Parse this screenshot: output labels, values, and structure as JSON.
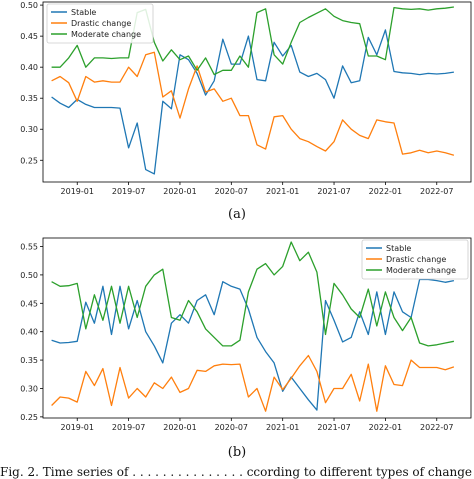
{
  "chart_data": [
    {
      "type": "line",
      "caption": "(a)",
      "x": [
        "2018-10",
        "2018-11",
        "2018-12",
        "2019-01",
        "2019-02",
        "2019-03",
        "2019-04",
        "2019-05",
        "2019-06",
        "2019-07",
        "2019-08",
        "2019-09",
        "2019-10",
        "2019-11",
        "2019-12",
        "2020-01",
        "2020-02",
        "2020-03",
        "2020-04",
        "2020-05",
        "2020-06",
        "2020-07",
        "2020-08",
        "2020-09",
        "2020-10",
        "2020-11",
        "2020-12",
        "2021-01",
        "2021-02",
        "2021-03",
        "2021-04",
        "2021-05",
        "2021-06",
        "2021-07",
        "2021-08",
        "2021-09",
        "2021-10",
        "2021-11",
        "2021-12",
        "2022-01",
        "2022-02",
        "2022-03",
        "2022-04",
        "2022-05",
        "2022-06",
        "2022-07",
        "2022-08",
        "2022-09"
      ],
      "xticks": [
        "2019-01",
        "2019-07",
        "2020-01",
        "2020-07",
        "2021-01",
        "2021-07",
        "2022-01",
        "2022-07"
      ],
      "yticks": [
        "0.25",
        "0.30",
        "0.35",
        "0.40",
        "0.45",
        "0.50"
      ],
      "ylim": [
        0.215,
        0.505
      ],
      "legend_position": "top-left",
      "series": [
        {
          "name": "Stable",
          "color": "#1f77b4",
          "values": [
            0.352,
            0.342,
            0.335,
            0.348,
            0.34,
            0.335,
            0.335,
            0.335,
            0.334,
            0.27,
            0.31,
            0.235,
            0.228,
            0.345,
            0.333,
            0.42,
            0.412,
            0.39,
            0.355,
            0.378,
            0.445,
            0.405,
            0.405,
            0.45,
            0.38,
            0.378,
            0.44,
            0.418,
            0.435,
            0.392,
            0.385,
            0.39,
            0.38,
            0.35,
            0.402,
            0.375,
            0.378,
            0.448,
            0.42,
            0.46,
            0.393,
            0.391,
            0.39,
            0.388,
            0.39,
            0.389,
            0.39,
            0.392
          ]
        },
        {
          "name": "Drastic change",
          "color": "#ff7f0e",
          "values": [
            0.378,
            0.385,
            0.375,
            0.345,
            0.385,
            0.376,
            0.378,
            0.376,
            0.376,
            0.4,
            0.385,
            0.42,
            0.424,
            0.352,
            0.362,
            0.318,
            0.365,
            0.402,
            0.36,
            0.365,
            0.345,
            0.35,
            0.322,
            0.322,
            0.275,
            0.268,
            0.32,
            0.322,
            0.3,
            0.285,
            0.28,
            0.272,
            0.265,
            0.28,
            0.315,
            0.3,
            0.29,
            0.285,
            0.315,
            0.312,
            0.31,
            0.26,
            0.262,
            0.266,
            0.262,
            0.265,
            0.262,
            0.258
          ]
        },
        {
          "name": "Moderate change",
          "color": "#2ca02c",
          "values": [
            0.4,
            0.4,
            0.415,
            0.435,
            0.4,
            0.415,
            0.415,
            0.414,
            0.415,
            0.415,
            0.488,
            0.493,
            0.44,
            0.41,
            0.428,
            0.412,
            0.418,
            0.395,
            0.415,
            0.388,
            0.395,
            0.395,
            0.418,
            0.4,
            0.488,
            0.494,
            0.42,
            0.405,
            0.44,
            0.472,
            0.48,
            0.487,
            0.494,
            0.482,
            0.475,
            0.472,
            0.47,
            0.418,
            0.418,
            0.412,
            0.496,
            0.494,
            0.493,
            0.494,
            0.492,
            0.494,
            0.495,
            0.497
          ]
        }
      ]
    },
    {
      "type": "line",
      "caption": "(b)",
      "x": [
        "2018-10",
        "2018-11",
        "2018-12",
        "2019-01",
        "2019-02",
        "2019-03",
        "2019-04",
        "2019-05",
        "2019-06",
        "2019-07",
        "2019-08",
        "2019-09",
        "2019-10",
        "2019-11",
        "2019-12",
        "2020-01",
        "2020-02",
        "2020-03",
        "2020-04",
        "2020-05",
        "2020-06",
        "2020-07",
        "2020-08",
        "2020-09",
        "2020-10",
        "2020-11",
        "2020-12",
        "2021-01",
        "2021-02",
        "2021-03",
        "2021-04",
        "2021-05",
        "2021-06",
        "2021-07",
        "2021-08",
        "2021-09",
        "2021-10",
        "2021-11",
        "2021-12",
        "2022-01",
        "2022-02",
        "2022-03",
        "2022-04",
        "2022-05",
        "2022-06",
        "2022-07",
        "2022-08",
        "2022-09"
      ],
      "xticks": [
        "2019-01",
        "2019-07",
        "2020-01",
        "2020-07",
        "2021-01",
        "2021-07",
        "2022-01",
        "2022-07"
      ],
      "yticks": [
        "0.25",
        "0.30",
        "0.35",
        "0.40",
        "0.45",
        "0.50",
        "0.55"
      ],
      "ylim": [
        0.248,
        0.565
      ],
      "legend_position": "top-right",
      "series": [
        {
          "name": "Stable",
          "color": "#1f77b4",
          "values": [
            0.385,
            0.38,
            0.381,
            0.383,
            0.452,
            0.415,
            0.48,
            0.395,
            0.48,
            0.405,
            0.455,
            0.4,
            0.375,
            0.345,
            0.415,
            0.43,
            0.415,
            0.455,
            0.465,
            0.43,
            0.488,
            0.48,
            0.475,
            0.44,
            0.39,
            0.365,
            0.345,
            0.295,
            0.32,
            0.3,
            0.28,
            0.262,
            0.455,
            0.42,
            0.382,
            0.39,
            0.435,
            0.395,
            0.47,
            0.395,
            0.47,
            0.435,
            0.425,
            0.492,
            0.492,
            0.49,
            0.487,
            0.49
          ]
        },
        {
          "name": "Drastic change",
          "color": "#ff7f0e",
          "values": [
            0.27,
            0.285,
            0.283,
            0.276,
            0.33,
            0.305,
            0.335,
            0.27,
            0.337,
            0.283,
            0.3,
            0.285,
            0.31,
            0.3,
            0.32,
            0.293,
            0.3,
            0.332,
            0.33,
            0.34,
            0.343,
            0.342,
            0.343,
            0.285,
            0.3,
            0.26,
            0.32,
            0.298,
            0.318,
            0.34,
            0.358,
            0.33,
            0.275,
            0.3,
            0.3,
            0.325,
            0.278,
            0.343,
            0.26,
            0.34,
            0.307,
            0.305,
            0.35,
            0.337,
            0.337,
            0.337,
            0.333,
            0.338
          ]
        },
        {
          "name": "Moderate change",
          "color": "#2ca02c",
          "values": [
            0.488,
            0.48,
            0.481,
            0.485,
            0.405,
            0.465,
            0.42,
            0.48,
            0.415,
            0.48,
            0.425,
            0.48,
            0.5,
            0.51,
            0.425,
            0.42,
            0.455,
            0.435,
            0.405,
            0.39,
            0.375,
            0.375,
            0.385,
            0.47,
            0.51,
            0.52,
            0.5,
            0.515,
            0.558,
            0.525,
            0.54,
            0.505,
            0.395,
            0.485,
            0.465,
            0.44,
            0.425,
            0.475,
            0.41,
            0.47,
            0.425,
            0.402,
            0.425,
            0.38,
            0.375,
            0.377,
            0.38,
            0.383
          ]
        }
      ]
    }
  ],
  "figure_caption_fragment": "Fig. 2.  Time series of . . . . . . . . . . . . . . . ccording to different types of change . ("
}
